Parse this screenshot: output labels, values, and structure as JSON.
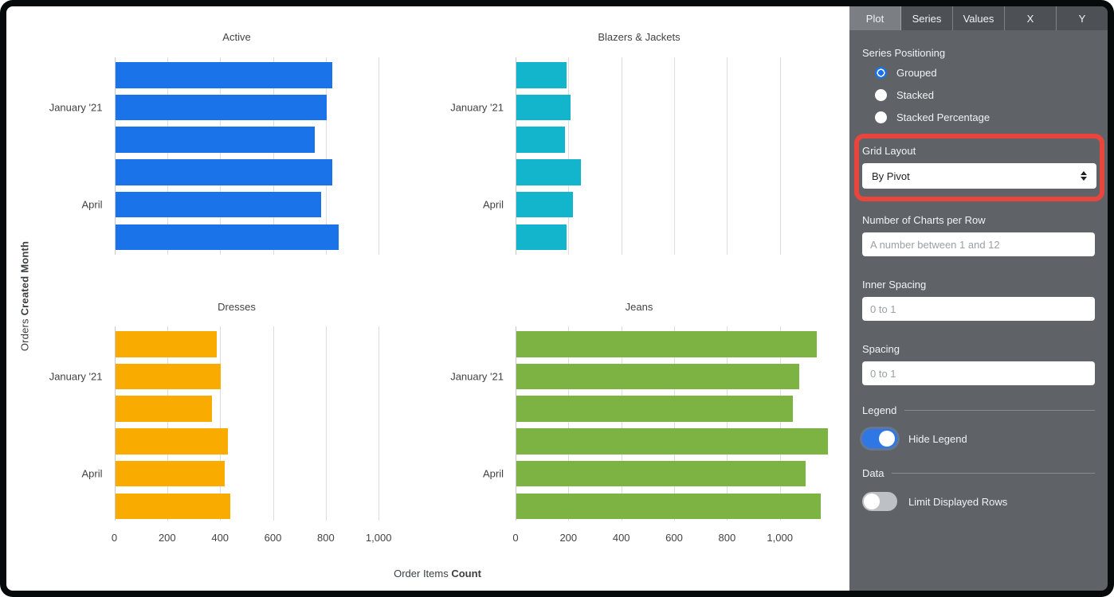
{
  "chart_area": {
    "y_axis_title": {
      "regular": "Orders ",
      "bold": "Created Month"
    },
    "x_axis_title": {
      "regular": "Order Items ",
      "bold": "Count"
    },
    "x_ticks": [
      0,
      200,
      400,
      600,
      800,
      1000
    ],
    "x_tick_labels": [
      "0",
      "200",
      "400",
      "600",
      "800",
      "1,000"
    ],
    "y_tick_labels": [
      {
        "row_index": 1,
        "label": "January '21"
      },
      {
        "row_index": 4,
        "label": "April"
      }
    ]
  },
  "chart_data": [
    {
      "type": "bar",
      "orientation": "horizontal",
      "title": "Active",
      "color": "#1a73e8",
      "values": [
        820,
        800,
        755,
        820,
        780,
        845
      ],
      "xlabel": "Order Items Count",
      "ylabel": "Orders Created Month",
      "xlim": [
        0,
        1007
      ],
      "grid_step": 200,
      "grid_on": true,
      "legend": "hidden"
    },
    {
      "type": "bar",
      "orientation": "horizontal",
      "title": "Blazers & Jackets",
      "color": "#12b5cb",
      "values": [
        190,
        205,
        185,
        245,
        215,
        190
      ],
      "xlabel": "Order Items Count",
      "ylabel": "Orders Created Month",
      "xlim": [
        0,
        1191
      ],
      "grid_step": 200,
      "grid_on": true,
      "legend": "hidden"
    },
    {
      "type": "bar",
      "orientation": "horizontal",
      "title": "Dresses",
      "color": "#f9ab00",
      "values": [
        385,
        400,
        365,
        425,
        415,
        435
      ],
      "xlabel": "Order Items Count",
      "ylabel": "Orders Created Month",
      "xlim": [
        0,
        1007
      ],
      "grid_step": 200,
      "grid_on": true,
      "legend": "hidden"
    },
    {
      "type": "bar",
      "orientation": "horizontal",
      "title": "Jeans",
      "color": "#7cb342",
      "values": [
        1135,
        1070,
        1045,
        1180,
        1095,
        1150
      ],
      "xlabel": "Order Items Count",
      "ylabel": "Orders Created Month",
      "xlim": [
        0,
        1191
      ],
      "grid_step": 200,
      "grid_on": true,
      "legend": "hidden"
    }
  ],
  "panel": {
    "accent_color": "#1a73e8",
    "highlight_color": "#e8453c",
    "tabs": [
      {
        "label": "Plot",
        "active": true
      },
      {
        "label": "Series",
        "active": false
      },
      {
        "label": "Values",
        "active": false
      },
      {
        "label": "X",
        "active": false
      },
      {
        "label": "Y",
        "active": false
      }
    ],
    "series_positioning": {
      "label": "Series Positioning",
      "options": [
        {
          "label": "Grouped",
          "selected": true
        },
        {
          "label": "Stacked",
          "selected": false
        },
        {
          "label": "Stacked Percentage",
          "selected": false
        }
      ]
    },
    "grid_layout": {
      "label": "Grid Layout",
      "value": "By Pivot",
      "highlighted": true
    },
    "charts_per_row": {
      "label": "Number of Charts per Row",
      "value": "",
      "placeholder": "A number between 1 and 12"
    },
    "inner_spacing": {
      "label": "Inner Spacing",
      "value": "",
      "placeholder": "0 to 1"
    },
    "spacing": {
      "label": "Spacing",
      "value": "",
      "placeholder": "0 to 1"
    },
    "legend_section": {
      "label": "Legend",
      "toggle": {
        "label": "Hide Legend",
        "on": true
      }
    },
    "data_section": {
      "label": "Data",
      "toggle": {
        "label": "Limit Displayed Rows",
        "on": false
      }
    }
  }
}
